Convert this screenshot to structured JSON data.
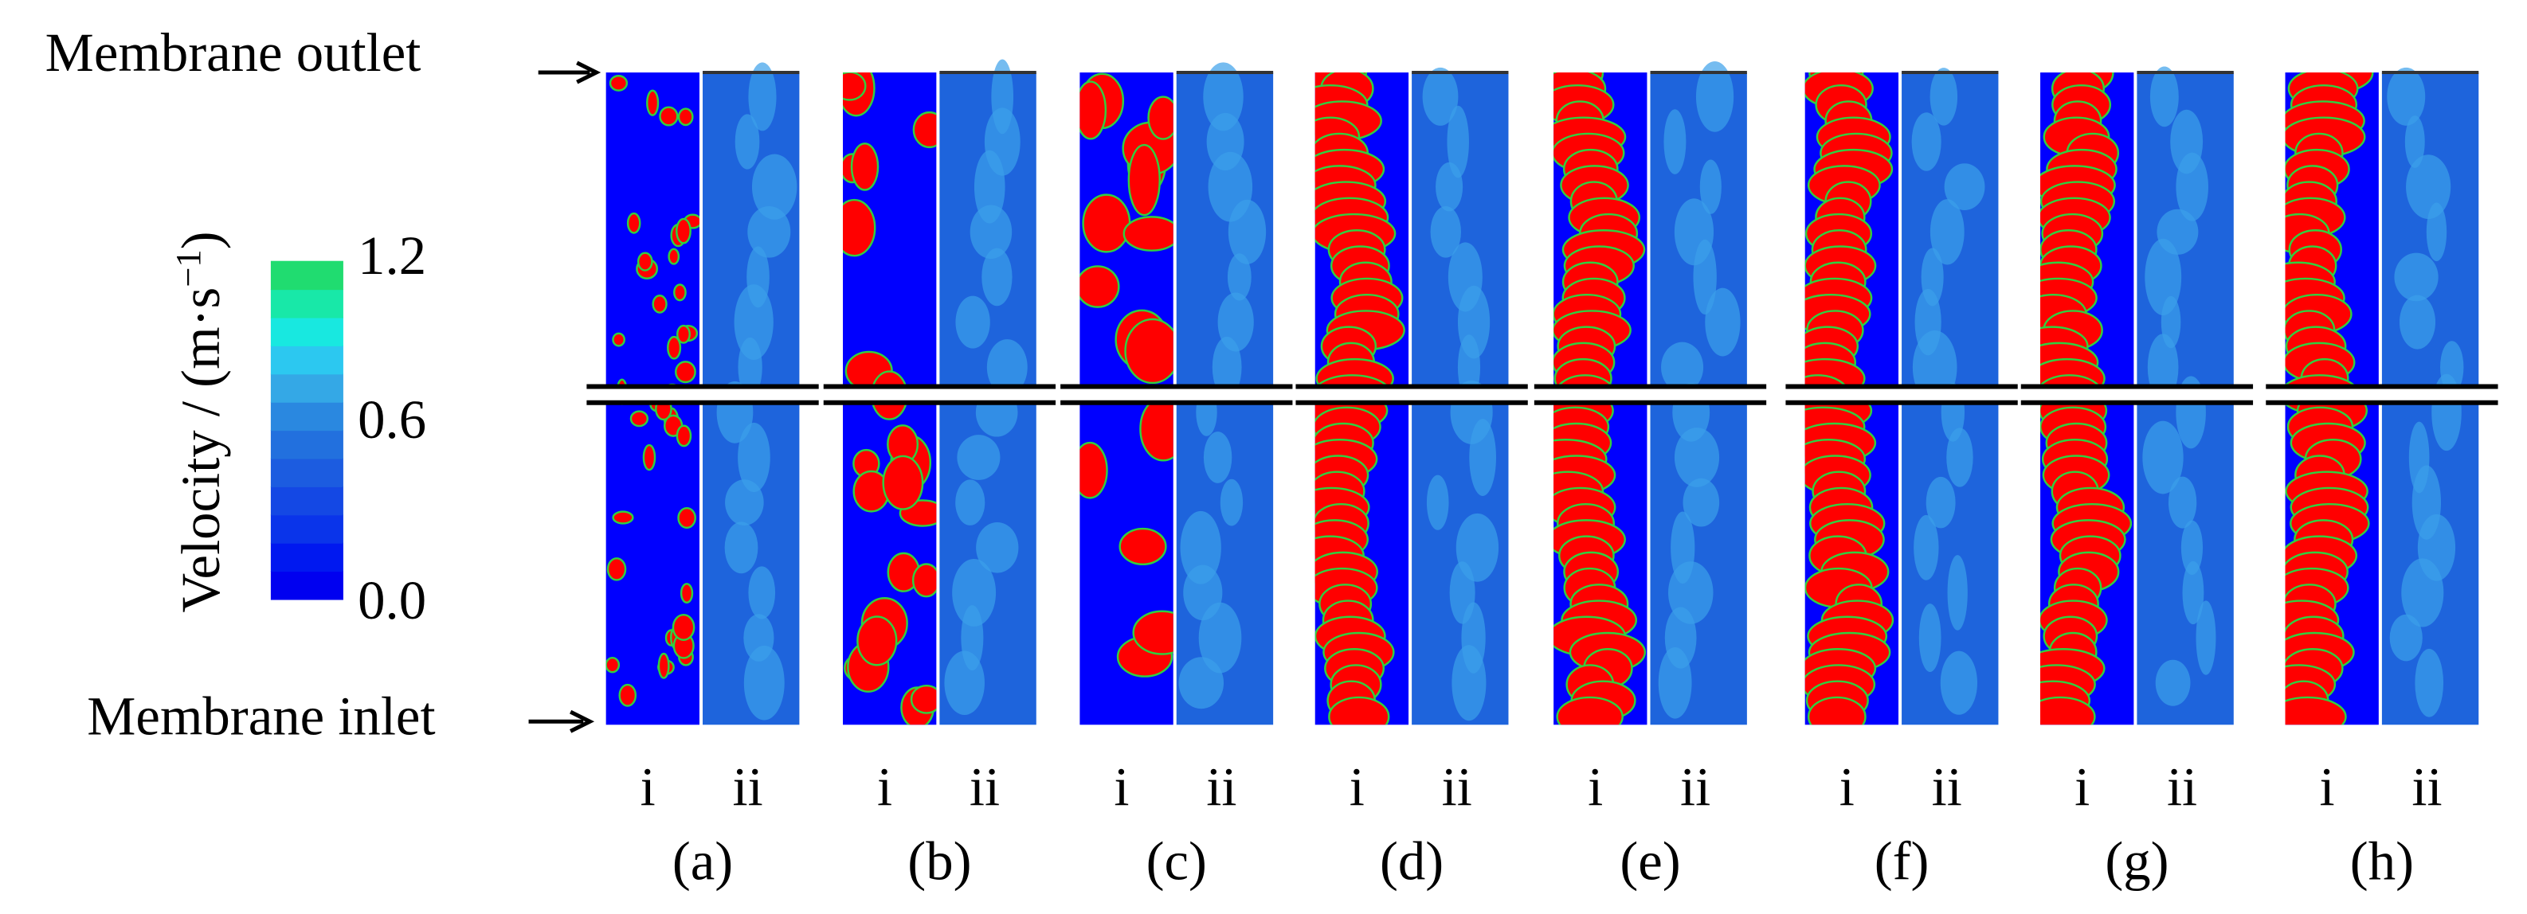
{
  "annotations": {
    "outlet": "Membrane outlet",
    "inlet": "Membrane inlet"
  },
  "colorbar": {
    "title": "Velocity / (m·s",
    "title_exponent": "−1",
    "title_close": ")",
    "ticks": [
      "1.2",
      "0.6",
      "0.0"
    ]
  },
  "panels": [
    {
      "label": "(a)",
      "columns": [
        "i",
        "ii"
      ]
    },
    {
      "label": "(b)",
      "columns": [
        "i",
        "ii"
      ]
    },
    {
      "label": "(c)",
      "columns": [
        "i",
        "ii"
      ]
    },
    {
      "label": "(d)",
      "columns": [
        "i",
        "ii"
      ]
    },
    {
      "label": "(e)",
      "columns": [
        "i",
        "ii"
      ]
    },
    {
      "label": "(f)",
      "columns": [
        "i",
        "ii"
      ]
    },
    {
      "label": "(g)",
      "columns": [
        "i",
        "ii"
      ]
    },
    {
      "label": "(h)",
      "columns": [
        "i",
        "ii"
      ]
    }
  ]
}
